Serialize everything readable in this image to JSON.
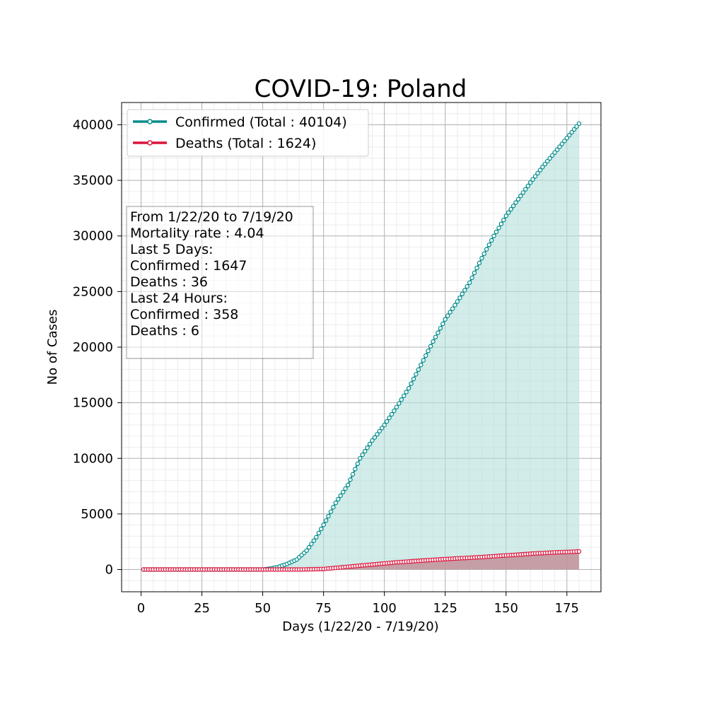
{
  "chart_data": {
    "type": "line",
    "title": "COVID-19: Poland",
    "xlabel": "Days (1/22/20 - 7/19/20)",
    "ylabel": "No of Cases",
    "xlim": [
      -8,
      189
    ],
    "ylim": [
      -2000,
      42000
    ],
    "x_ticks": [
      0,
      25,
      50,
      75,
      100,
      125,
      150,
      175
    ],
    "y_ticks": [
      0,
      5000,
      10000,
      15000,
      20000,
      25000,
      30000,
      35000,
      40000
    ],
    "grid": true,
    "legend_position": "top-left",
    "series": [
      {
        "name": "Confirmed (Total : 40104)",
        "color": "#008b8b",
        "fill": "#b2dfdb",
        "marker": "circle",
        "points": [
          [
            1,
            0
          ],
          [
            50,
            0
          ],
          [
            53,
            80
          ],
          [
            56,
            200
          ],
          [
            60,
            500
          ],
          [
            64,
            900
          ],
          [
            68,
            1700
          ],
          [
            72,
            2900
          ],
          [
            76,
            4400
          ],
          [
            80,
            6000
          ],
          [
            85,
            7600
          ],
          [
            90,
            10000
          ],
          [
            95,
            11600
          ],
          [
            100,
            13000
          ],
          [
            105,
            14600
          ],
          [
            110,
            16300
          ],
          [
            115,
            18400
          ],
          [
            120,
            20500
          ],
          [
            125,
            22500
          ],
          [
            130,
            24100
          ],
          [
            135,
            25800
          ],
          [
            140,
            28000
          ],
          [
            145,
            30000
          ],
          [
            150,
            31800
          ],
          [
            155,
            33300
          ],
          [
            160,
            34800
          ],
          [
            165,
            36200
          ],
          [
            170,
            37500
          ],
          [
            175,
            38800
          ],
          [
            180,
            40104
          ]
        ]
      },
      {
        "name": "Deaths (Total : 1624)",
        "color": "#dc143c",
        "fill": "#c0848f",
        "marker": "circle",
        "points": [
          [
            1,
            0
          ],
          [
            65,
            0
          ],
          [
            75,
            50
          ],
          [
            80,
            150
          ],
          [
            85,
            250
          ],
          [
            90,
            350
          ],
          [
            95,
            450
          ],
          [
            100,
            550
          ],
          [
            105,
            650
          ],
          [
            110,
            720
          ],
          [
            115,
            800
          ],
          [
            120,
            870
          ],
          [
            125,
            940
          ],
          [
            130,
            1000
          ],
          [
            135,
            1060
          ],
          [
            140,
            1120
          ],
          [
            145,
            1200
          ],
          [
            150,
            1270
          ],
          [
            155,
            1340
          ],
          [
            160,
            1420
          ],
          [
            165,
            1480
          ],
          [
            170,
            1540
          ],
          [
            175,
            1580
          ],
          [
            180,
            1624
          ]
        ]
      }
    ],
    "annotation": [
      "From 1/22/20 to 7/19/20",
      "Mortality rate : 4.04",
      "Last 5 Days:",
      "Confirmed : 1647",
      "Deaths : 36",
      "Last 24 Hours:",
      "Confirmed : 358",
      "Deaths : 6"
    ]
  }
}
